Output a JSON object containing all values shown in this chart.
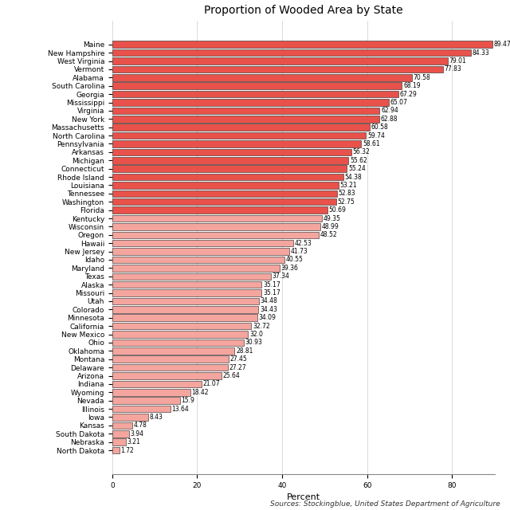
{
  "title": "Proportion of Wooded Area by State",
  "xlabel": "Percent",
  "source": "Sources: Stockingblue, United States Department of Agriculture",
  "states": [
    "Maine",
    "New Hampshire",
    "West Virginia",
    "Vermont",
    "Alabama",
    "South Carolina",
    "Georgia",
    "Mississippi",
    "Virginia",
    "New York",
    "Massachusetts",
    "North Carolina",
    "Pennsylvania",
    "Arkansas",
    "Michigan",
    "Connecticut",
    "Rhode Island",
    "Louisiana",
    "Tennessee",
    "Washington",
    "Florida",
    "Kentucky",
    "Wisconsin",
    "Oregon",
    "Hawaii",
    "New Jersey",
    "Idaho",
    "Maryland",
    "Texas",
    "Alaska",
    "Missouri",
    "Utah",
    "Colorado",
    "Minnesota",
    "California",
    "New Mexico",
    "Ohio",
    "Oklahoma",
    "Montana",
    "Delaware",
    "Arizona",
    "Indiana",
    "Wyoming",
    "Nevada",
    "Illinois",
    "Iowa",
    "Kansas",
    "South Dakota",
    "Nebraska",
    "North Dakota"
  ],
  "values": [
    89.47,
    84.33,
    79.01,
    77.83,
    70.58,
    68.19,
    67.29,
    65.07,
    62.94,
    62.88,
    60.58,
    59.74,
    58.61,
    56.32,
    55.62,
    55.24,
    54.38,
    53.21,
    52.83,
    52.75,
    50.69,
    49.35,
    48.99,
    48.52,
    42.53,
    41.73,
    40.55,
    39.36,
    37.34,
    35.17,
    35.17,
    34.48,
    34.43,
    34.09,
    32.72,
    32.0,
    30.93,
    28.81,
    27.45,
    27.27,
    25.64,
    21.07,
    18.42,
    15.9,
    13.64,
    8.43,
    4.78,
    3.94,
    3.21,
    1.72
  ],
  "color_threshold": 50.0,
  "color_high": "#e8524a",
  "color_low": "#f4a59e",
  "bar_edge_color": "#222222",
  "bar_edge_width": 0.4,
  "value_label_fontsize": 5.5,
  "axis_label_fontsize": 8,
  "title_fontsize": 10,
  "tick_label_fontsize": 6.5,
  "source_fontsize": 6.5,
  "background_color": "#ffffff",
  "grid_color": "#cccccc",
  "xlim": [
    0,
    90
  ],
  "xticks": [
    0,
    20,
    40,
    60,
    80
  ],
  "bar_height": 0.82
}
